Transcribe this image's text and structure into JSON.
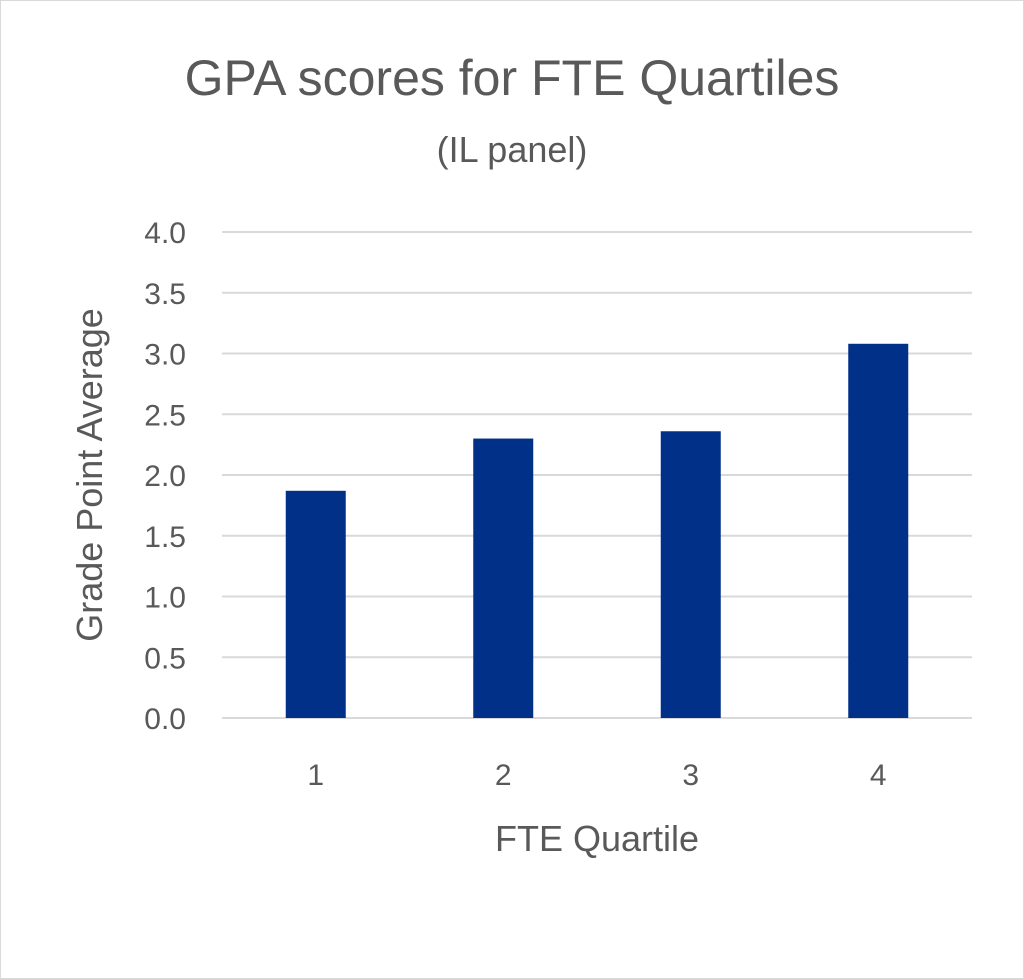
{
  "chart_data": {
    "type": "bar",
    "title": "GPA scores for FTE Quartiles",
    "subtitle": "(IL panel)",
    "xlabel": "FTE Quartile",
    "ylabel": "Grade Point Average",
    "categories": [
      "1",
      "2",
      "3",
      "4"
    ],
    "values": [
      1.87,
      2.3,
      2.36,
      3.08
    ],
    "ylim": [
      0,
      4
    ],
    "ytick_labels": [
      "0.0",
      "0.5",
      "1.0",
      "1.5",
      "2.0",
      "2.5",
      "3.0",
      "3.5",
      "4.0"
    ],
    "grid": true,
    "legend": "none",
    "colors": {
      "bar": "#003087",
      "gridline": "#d9d9d9",
      "text": "#595959"
    }
  }
}
